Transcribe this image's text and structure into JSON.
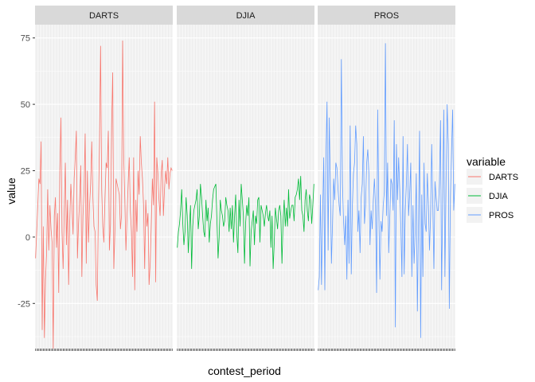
{
  "chart_data": {
    "type": "line",
    "facets": [
      "DARTS",
      "DJIA",
      "PROS"
    ],
    "xlabel": "contest_period",
    "ylabel": "value",
    "ylim": [
      -42,
      80
    ],
    "y_ticks": [
      -25,
      0,
      25,
      50,
      75
    ],
    "grid": true,
    "legend": {
      "title": "variable",
      "placement": "right"
    },
    "series": [
      {
        "name": "DARTS",
        "color": "#F8766D",
        "values": [
          -8,
          2,
          12,
          22,
          20,
          36,
          -35,
          4,
          -38,
          -16,
          -6,
          18,
          -5,
          12,
          3,
          -2,
          -42,
          8,
          15,
          -4,
          9,
          -21,
          25,
          45,
          2,
          -12,
          10,
          28,
          -3,
          14,
          -18,
          6,
          20,
          12,
          1,
          22,
          30,
          40,
          -8,
          5,
          14,
          27,
          -15,
          8,
          18,
          39,
          -10,
          25,
          -2,
          12,
          20,
          36,
          15,
          4,
          2,
          -18,
          -24,
          10,
          35,
          72,
          18,
          4,
          -2,
          15,
          28,
          26,
          40,
          -5,
          5,
          42,
          62,
          -12,
          2,
          22,
          20,
          18,
          16,
          3,
          8,
          74,
          30,
          14,
          -5,
          8,
          20,
          30,
          10,
          2,
          -15,
          30,
          -20,
          14,
          2,
          25,
          16,
          38,
          28,
          22,
          12,
          -12,
          14,
          4,
          9,
          -18,
          -10,
          5,
          22,
          12,
          51,
          -17,
          30,
          24,
          14,
          8,
          24,
          29,
          8,
          18,
          25,
          20,
          30,
          18,
          24,
          26,
          25
        ]
      },
      {
        "name": "DJIA",
        "color": "#00BA38",
        "values": [
          -4,
          2,
          5,
          10,
          18,
          5,
          -3,
          2,
          15,
          8,
          -6,
          4,
          12,
          -12,
          4,
          10,
          12,
          14,
          18,
          3,
          8,
          20,
          15,
          8,
          2,
          0,
          14,
          6,
          11,
          -2,
          5,
          8,
          14,
          18,
          19,
          20,
          6,
          -8,
          0,
          14,
          10,
          8,
          4,
          6,
          15,
          12,
          10,
          2,
          11,
          3,
          12,
          -2,
          8,
          16,
          1,
          -6,
          14,
          4,
          20,
          14,
          8,
          -10,
          5,
          12,
          8,
          15,
          -11,
          2,
          6,
          10,
          -3,
          8,
          5,
          14,
          15,
          -2,
          12,
          10,
          8,
          4,
          9,
          12,
          8,
          6,
          10,
          -4,
          8,
          -12,
          -2,
          11,
          7,
          3,
          10,
          12,
          8,
          -10,
          6,
          14,
          4,
          11,
          4,
          18,
          7,
          10,
          12,
          12,
          6,
          15,
          16,
          18,
          22,
          14,
          23,
          10,
          8,
          2,
          14,
          18,
          10,
          6,
          16,
          14,
          5,
          12,
          20
        ]
      },
      {
        "name": "PROS",
        "color": "#619CFF",
        "values": [
          -20,
          -15,
          16,
          -18,
          8,
          30,
          -20,
          30,
          51,
          -5,
          45,
          20,
          -10,
          5,
          22,
          14,
          28,
          26,
          18,
          12,
          8,
          67,
          20,
          6,
          -3,
          8,
          -16,
          14,
          -10,
          42,
          -14,
          12,
          24,
          28,
          42,
          35,
          2,
          10,
          -6,
          15,
          20,
          38,
          5,
          12,
          28,
          33,
          24,
          -3,
          10,
          3,
          14,
          22,
          12,
          -21,
          48,
          10,
          -16,
          6,
          2,
          12,
          17,
          73,
          8,
          28,
          -6,
          8,
          22,
          20,
          10,
          44,
          -34,
          35,
          14,
          30,
          18,
          4,
          -15,
          38,
          -14,
          10,
          20,
          35,
          8,
          16,
          28,
          -15,
          12,
          -10,
          2,
          24,
          -28,
          5,
          40,
          -38,
          16,
          -15,
          28,
          5,
          2,
          24,
          12,
          -5,
          8,
          35,
          12,
          -12,
          21,
          15,
          10,
          10,
          20,
          44,
          -20,
          15,
          48,
          -15,
          20,
          50,
          35,
          -27,
          15,
          32,
          48,
          10,
          20
        ]
      }
    ]
  }
}
